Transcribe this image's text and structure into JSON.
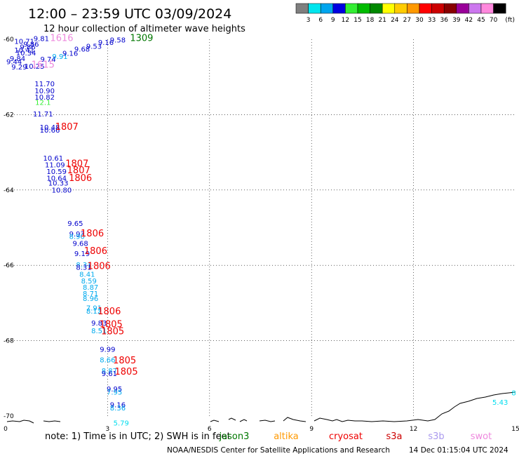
{
  "header": {
    "title": "12:00 – 23:59 UTC 03/09/2024",
    "subtitle": "12 hour collection of altimeter wave heights"
  },
  "legend": {
    "labels": [
      "3",
      "6",
      "9",
      "12",
      "15",
      "18",
      "21",
      "24",
      "27",
      "30",
      "33",
      "36",
      "39",
      "42",
      "45",
      "70"
    ],
    "unit": "(ft)",
    "colors": [
      "#7f7f7f",
      "#00e5ee",
      "#00a5ee",
      "#0000e0",
      "#33ee33",
      "#00bb00",
      "#008800",
      "#ffff00",
      "#ffcc00",
      "#ff9900",
      "#ff0000",
      "#cc0000",
      "#880000",
      "#990099",
      "#cc77ee",
      "#ff88dd",
      "#000000"
    ]
  },
  "footer": {
    "note": "note:  1) Time is in UTC; 2) SWH is in feet",
    "satellites": [
      {
        "name": "jason3",
        "color": "#007700"
      },
      {
        "name": "altika",
        "color": "#ff9900"
      },
      {
        "name": "cryosat",
        "color": "#ee0000"
      },
      {
        "name": "s3a",
        "color": "#cc0000"
      },
      {
        "name": "s3b",
        "color": "#aa99ee"
      },
      {
        "name": "swot",
        "color": "#ee88dd"
      }
    ],
    "credit": "NOAA/NESDIS Center for Satellite Applications and Research",
    "generated": "14 Dec 01:15:04 UTC 2024"
  },
  "chart_data": {
    "type": "scatter",
    "title": "12:00 – 23:59 UTC 03/09/2024",
    "subtitle": "12 hour collection of altimeter wave heights",
    "x_ticks": [
      "0",
      "3",
      "6",
      "9",
      "12",
      "15"
    ],
    "y_ticks": [
      "-60",
      "-62",
      "-64",
      "-66",
      "-68",
      "-70"
    ],
    "xlim": [
      0,
      15
    ],
    "ylim": [
      -70,
      -60
    ],
    "grid": true,
    "points": [
      {
        "lon": 1.05,
        "lat": -60.05,
        "text": "9.81",
        "color": "#0000cc"
      },
      {
        "lon": 0.55,
        "lat": -60.12,
        "text": "10.71",
        "color": "#0000cc"
      },
      {
        "lon": 0.75,
        "lat": -60.2,
        "text": "9.86",
        "color": "#0000cc"
      },
      {
        "lon": 0.65,
        "lat": -60.27,
        "text": "9.86",
        "color": "#0000cc"
      },
      {
        "lon": 0.55,
        "lat": -60.35,
        "text": "10.41",
        "color": "#0000cc"
      },
      {
        "lon": 0.6,
        "lat": -60.43,
        "text": "10.34",
        "color": "#0000cc"
      },
      {
        "lon": 0.35,
        "lat": -60.58,
        "text": "9.84",
        "color": "#0000cc"
      },
      {
        "lon": 0.25,
        "lat": -60.66,
        "text": "9.44",
        "color": "#0000cc"
      },
      {
        "lon": 0.4,
        "lat": -60.8,
        "text": "9.29",
        "color": "#0000cc"
      },
      {
        "lon": 0.85,
        "lat": -60.78,
        "text": "10.25",
        "color": "#0000cc"
      },
      {
        "lon": 1.25,
        "lat": -60.6,
        "text": "9.74",
        "color": "#0000cc"
      },
      {
        "lon": 1.6,
        "lat": -60.52,
        "text": "9.91",
        "color": "#00aaee"
      },
      {
        "lon": 1.9,
        "lat": -60.44,
        "text": "9.16",
        "color": "#0000cc"
      },
      {
        "lon": 2.25,
        "lat": -60.33,
        "text": "9.68",
        "color": "#0000cc"
      },
      {
        "lon": 2.6,
        "lat": -60.25,
        "text": "9.53",
        "color": "#0000cc"
      },
      {
        "lon": 2.95,
        "lat": -60.15,
        "text": "9.16",
        "color": "#0000cc"
      },
      {
        "lon": 3.3,
        "lat": -60.08,
        "text": "9.58",
        "color": "#0000cc"
      },
      {
        "lon": 1.15,
        "lat": -61.25,
        "text": "11.70",
        "color": "#0000cc"
      },
      {
        "lon": 1.15,
        "lat": -61.43,
        "text": "10.90",
        "color": "#0000cc"
      },
      {
        "lon": 1.15,
        "lat": -61.6,
        "text": "10.82",
        "color": "#0000cc"
      },
      {
        "lon": 1.1,
        "lat": -61.74,
        "text": "12.1",
        "color": "#33ee33"
      },
      {
        "lon": 1.1,
        "lat": -62.05,
        "text": "11.71",
        "color": "#0000cc"
      },
      {
        "lon": 1.3,
        "lat": -62.4,
        "text": "10.48",
        "color": "#0000cc"
      },
      {
        "lon": 1.3,
        "lat": -62.48,
        "text": "10.66",
        "color": "#0000cc"
      },
      {
        "lon": 1.4,
        "lat": -63.22,
        "text": "10.61",
        "color": "#0000cc"
      },
      {
        "lon": 1.45,
        "lat": -63.4,
        "text": "11.09",
        "color": "#0000cc"
      },
      {
        "lon": 1.5,
        "lat": -63.58,
        "text": "10.59",
        "color": "#0000cc"
      },
      {
        "lon": 1.5,
        "lat": -63.75,
        "text": "10.64",
        "color": "#0000cc"
      },
      {
        "lon": 1.55,
        "lat": -63.88,
        "text": "10.33",
        "color": "#0000cc"
      },
      {
        "lon": 1.65,
        "lat": -64.07,
        "text": "10.80",
        "color": "#0000cc"
      },
      {
        "lon": 2.05,
        "lat": -64.95,
        "text": "9.65",
        "color": "#0000cc"
      },
      {
        "lon": 2.1,
        "lat": -65.23,
        "text": "9.93",
        "color": "#0000cc"
      },
      {
        "lon": 2.1,
        "lat": -65.3,
        "text": "8.90",
        "color": "#00aaee"
      },
      {
        "lon": 2.2,
        "lat": -65.48,
        "text": "9.68",
        "color": "#0000cc"
      },
      {
        "lon": 2.25,
        "lat": -65.75,
        "text": "9.19",
        "color": "#0000cc"
      },
      {
        "lon": 2.3,
        "lat": -66.05,
        "text": "8.31",
        "color": "#00aaee"
      },
      {
        "lon": 2.3,
        "lat": -66.12,
        "text": "8.31",
        "color": "#0000cc"
      },
      {
        "lon": 2.4,
        "lat": -66.3,
        "text": "8.41",
        "color": "#00aaee"
      },
      {
        "lon": 2.45,
        "lat": -66.48,
        "text": "8.59",
        "color": "#00aaee"
      },
      {
        "lon": 2.5,
        "lat": -66.65,
        "text": "8.87",
        "color": "#00aaee"
      },
      {
        "lon": 2.5,
        "lat": -66.82,
        "text": "8.71",
        "color": "#00aaee"
      },
      {
        "lon": 2.5,
        "lat": -66.95,
        "text": "8.96",
        "color": "#00aaee"
      },
      {
        "lon": 2.6,
        "lat": -67.2,
        "text": "7.91",
        "color": "#00aaee"
      },
      {
        "lon": 2.6,
        "lat": -67.28,
        "text": "8.12",
        "color": "#00aaee"
      },
      {
        "lon": 2.75,
        "lat": -67.6,
        "text": "9.83",
        "color": "#0000cc"
      },
      {
        "lon": 2.75,
        "lat": -67.8,
        "text": "8.51",
        "color": "#00aaee"
      },
      {
        "lon": 3.0,
        "lat": -68.3,
        "text": "9.99",
        "color": "#0000cc"
      },
      {
        "lon": 3.0,
        "lat": -68.58,
        "text": "8.66",
        "color": "#00aaee"
      },
      {
        "lon": 3.05,
        "lat": -68.86,
        "text": "8.87",
        "color": "#00aaee"
      },
      {
        "lon": 3.05,
        "lat": -68.94,
        "text": "9.61",
        "color": "#0000cc"
      },
      {
        "lon": 3.2,
        "lat": -69.35,
        "text": "9.95",
        "color": "#0000cc"
      },
      {
        "lon": 3.2,
        "lat": -69.43,
        "text": "7.95",
        "color": "#00aaee"
      },
      {
        "lon": 3.3,
        "lat": -69.77,
        "text": "9.16",
        "color": "#0000cc"
      },
      {
        "lon": 3.3,
        "lat": -69.85,
        "text": "8.36",
        "color": "#00aaee"
      },
      {
        "lon": 3.4,
        "lat": -70.25,
        "text": "5.79",
        "color": "#00ddee"
      },
      {
        "lon": 14.55,
        "lat": -69.7,
        "text": "5.43",
        "color": "#00ddee"
      },
      {
        "lon": 14.95,
        "lat": -69.45,
        "text": "8",
        "color": "#00ddee"
      }
    ],
    "pass_times": [
      {
        "lon": 1.65,
        "lat": -60.05,
        "text": "1616",
        "color": "#ee88dd"
      },
      {
        "lon": 4.0,
        "lat": -60.05,
        "text": "1309",
        "color": "#007700"
      },
      {
        "lon": 1.1,
        "lat": -60.75,
        "text": "1615",
        "color": "#ee88dd"
      },
      {
        "lon": 1.8,
        "lat": -62.4,
        "text": "1807",
        "color": "#ee0000"
      },
      {
        "lon": 2.1,
        "lat": -63.38,
        "text": "1807",
        "color": "#ee0000"
      },
      {
        "lon": 2.15,
        "lat": -63.56,
        "text": "1807",
        "color": "#ee0000"
      },
      {
        "lon": 2.2,
        "lat": -63.76,
        "text": "1806",
        "color": "#ee0000"
      },
      {
        "lon": 2.55,
        "lat": -65.23,
        "text": "1806",
        "color": "#ee0000"
      },
      {
        "lon": 2.65,
        "lat": -65.7,
        "text": "1806",
        "color": "#ee0000"
      },
      {
        "lon": 2.75,
        "lat": -66.1,
        "text": "1806",
        "color": "#ee0000"
      },
      {
        "lon": 3.05,
        "lat": -67.3,
        "text": "1806",
        "color": "#ee0000"
      },
      {
        "lon": 3.1,
        "lat": -67.64,
        "text": "1805",
        "color": "#ee0000"
      },
      {
        "lon": 3.15,
        "lat": -67.83,
        "text": "1805",
        "color": "#ee0000"
      },
      {
        "lon": 3.5,
        "lat": -68.6,
        "text": "1805",
        "color": "#ee0000"
      },
      {
        "lon": 3.55,
        "lat": -68.9,
        "text": "1805",
        "color": "#ee0000"
      }
    ]
  }
}
